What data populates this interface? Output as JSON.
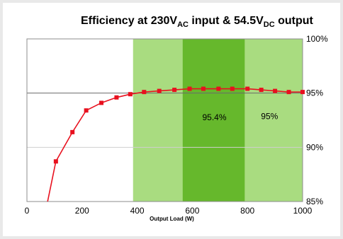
{
  "chart_data": {
    "type": "line",
    "title": {
      "prefix": "Efficiency at 230V",
      "sub1": "AC",
      "middle": " input & 54.5V",
      "sub2": "DC",
      "suffix": " output"
    },
    "xlabel": "Output Load (W)",
    "ylabel": "",
    "xlim": [
      0,
      1000
    ],
    "ylim": [
      85,
      100
    ],
    "x_ticks": [
      "0",
      "200",
      "400",
      "600",
      "800",
      "1000"
    ],
    "x_tick_values": [
      0,
      200,
      400,
      600,
      800,
      1000
    ],
    "y_ticks": [
      "85%",
      "90%",
      "95%",
      "100%"
    ],
    "y_tick_values": [
      85,
      90,
      95,
      100
    ],
    "y_axis_side": "right",
    "gridlines_y": [
      90,
      95
    ],
    "series": [
      {
        "x": [
          75,
          105,
          165,
          215,
          270,
          325,
          375,
          425,
          480,
          535,
          590,
          640,
          695,
          745,
          800,
          850,
          900,
          950,
          1000
        ],
        "values": [
          85.0,
          88.7,
          91.4,
          93.4,
          94.1,
          94.6,
          94.9,
          95.1,
          95.2,
          95.3,
          95.4,
          95.4,
          95.4,
          95.4,
          95.4,
          95.3,
          95.2,
          95.1,
          95.1
        ],
        "color": "#e8101e",
        "marker": "square"
      }
    ],
    "bands": [
      {
        "from": 385,
        "to": 1000,
        "color": "#a9dc80"
      },
      {
        "from": 565,
        "to": 790,
        "color": "#66b82c"
      }
    ],
    "annotations": [
      {
        "text": "95.4%",
        "x": 680,
        "y": 92.5
      },
      {
        "text": "95%",
        "x": 880,
        "y": 92.6
      }
    ]
  }
}
